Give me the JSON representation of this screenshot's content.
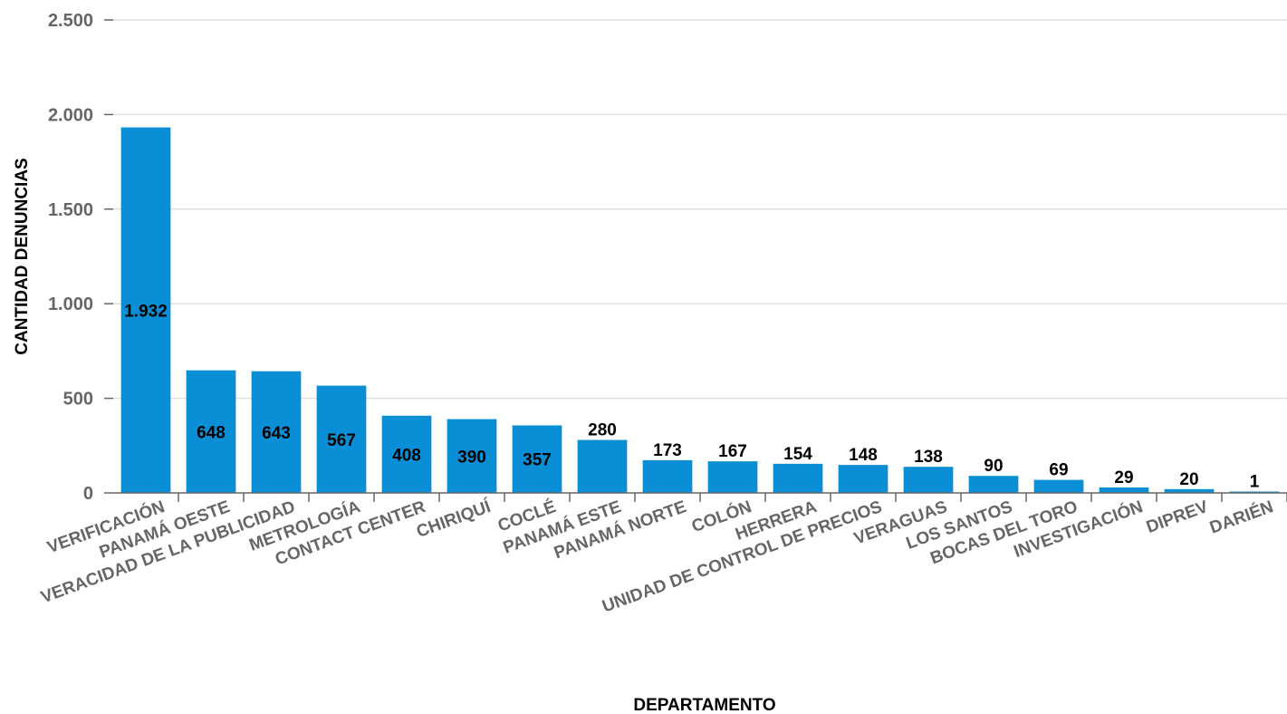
{
  "chart_data": {
    "type": "bar",
    "xlabel": "DEPARTAMENTO",
    "ylabel": "CANTIDAD DENUNCIAS",
    "ylim": [
      0,
      2500
    ],
    "yticks": [
      0,
      500,
      1000,
      1500,
      2000,
      2500
    ],
    "ytick_labels": [
      "0",
      "500",
      "1.000",
      "1.500",
      "2.000",
      "2.500"
    ],
    "grid": true,
    "categories": [
      "VERIFICACIÓN",
      "PANAMÁ OESTE",
      "VERACIDAD DE LA PUBLICIDAD",
      "METROLOGÍA",
      "CONTACT CENTER",
      "CHIRIQUÍ",
      "COCLÉ",
      "PANAMÁ ESTE",
      "PANAMÁ NORTE",
      "COLÓN",
      "HERRERA",
      "UNIDAD DE CONTROL DE PRECIOS",
      "VERAGUAS",
      "LOS SANTOS",
      "BOCAS DEL TORO",
      "INVESTIGACIÓN",
      "DIPREV",
      "DARIÉN"
    ],
    "values": [
      1932,
      648,
      643,
      567,
      408,
      390,
      357,
      280,
      173,
      167,
      154,
      148,
      138,
      90,
      69,
      29,
      20,
      1
    ],
    "value_labels": [
      "1.932",
      "648",
      "643",
      "567",
      "408",
      "390",
      "357",
      "280",
      "173",
      "167",
      "154",
      "148",
      "138",
      "90",
      "69",
      "29",
      "20",
      "1"
    ],
    "colors": {
      "bar": "#0a8fd6",
      "grid": "#e0e0e0",
      "axis": "#666666"
    }
  }
}
